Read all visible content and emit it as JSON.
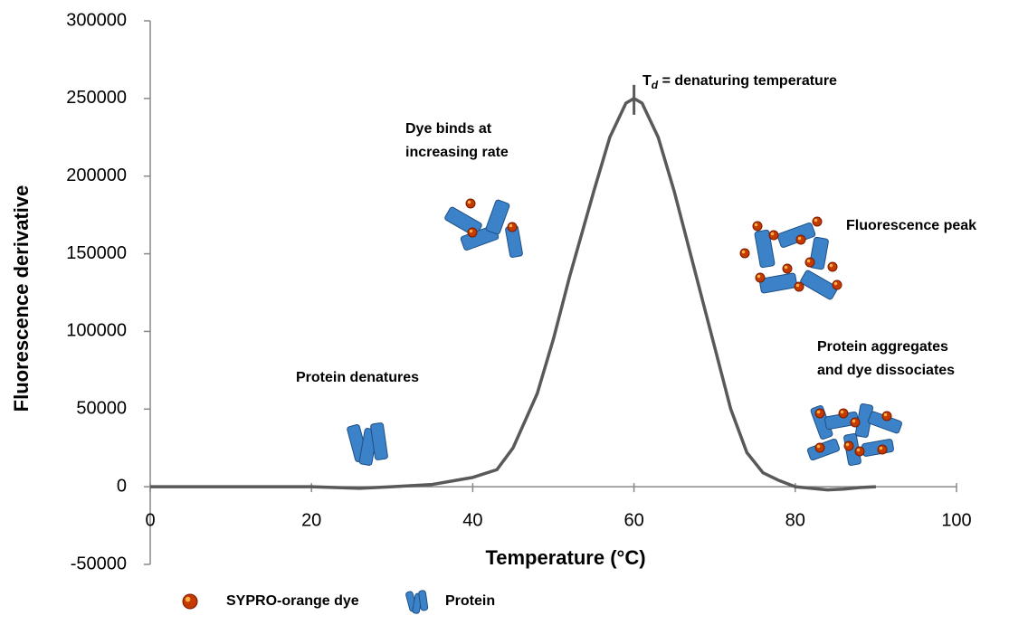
{
  "chart_data": {
    "type": "line",
    "xlabel": "Temperature (°C)",
    "ylabel": "Fluorescence derivative",
    "x": [
      0,
      20,
      26,
      30,
      35,
      40,
      43,
      45,
      48,
      50,
      52,
      55,
      57,
      59,
      60,
      61,
      63,
      65,
      68,
      70,
      72,
      74,
      76,
      78,
      80,
      84,
      86,
      88,
      90
    ],
    "series": [
      {
        "color": "#595959",
        "values": [
          0,
          0,
          -1000,
          0,
          1500,
          6000,
          11000,
          25000,
          60000,
          95000,
          135000,
          190000,
          225000,
          247000,
          250000,
          247000,
          225000,
          190000,
          130000,
          90000,
          50000,
          22000,
          9000,
          4000,
          0,
          -2000,
          -1500,
          -500,
          0
        ]
      }
    ],
    "xlim": [
      0,
      100
    ],
    "xticks": [
      0,
      20,
      40,
      60,
      80,
      100
    ],
    "ylim": [
      -50000,
      300000
    ],
    "yticks": [
      -50000,
      0,
      50000,
      100000,
      150000,
      200000,
      250000,
      300000
    ],
    "td_label": {
      "main": "T",
      "sub": "d",
      "rest": " = denaturing temperature"
    },
    "annotations": [
      [
        "Protein denatures"
      ],
      [
        "Dye binds at",
        "increasing rate"
      ],
      [
        "Fluorescence peak"
      ],
      [
        "Protein aggregates",
        "and dye dissociates"
      ]
    ],
    "legend_items": [
      "SYPRO-orange dye",
      "Protein"
    ]
  }
}
